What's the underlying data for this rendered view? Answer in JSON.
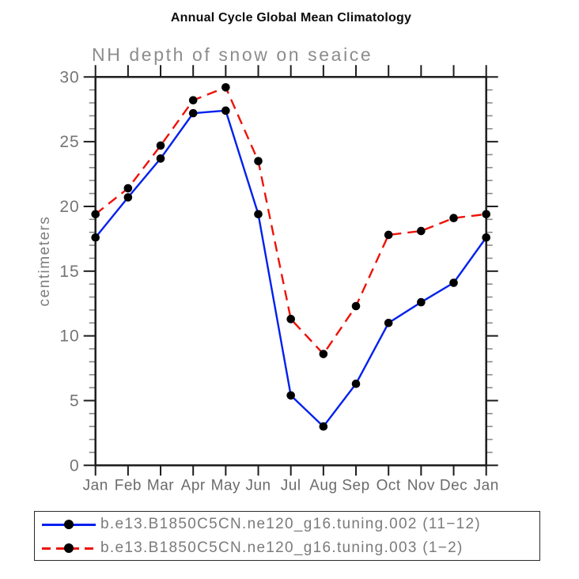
{
  "page": {
    "title": "Annual Cycle Global Mean Climatology",
    "subtitle": "NH depth of snow on seaice"
  },
  "chart_data": {
    "type": "line",
    "title": "Annual Cycle Global Mean Climatology",
    "subtitle": "NH depth of snow on seaice",
    "xlabel": "",
    "ylabel": "centimeters",
    "categories": [
      "Jan",
      "Feb",
      "Mar",
      "Apr",
      "May",
      "Jun",
      "Jul",
      "Aug",
      "Sep",
      "Oct",
      "Nov",
      "Dec",
      "Jan"
    ],
    "ylim": [
      0,
      30
    ],
    "yticks": [
      0,
      5,
      10,
      15,
      20,
      25,
      30
    ],
    "minor_tick_step": 1,
    "grid": false,
    "legend_position": "bottom-left-box",
    "series": [
      {
        "name": "b.e13.B1850C5CN.ne120_g16.tuning.002 (11−12)",
        "color": "#0020ee",
        "line_style": "solid",
        "marker": "black-circle",
        "values": [
          17.6,
          20.7,
          23.7,
          27.2,
          27.4,
          19.4,
          5.4,
          3.0,
          6.3,
          11.0,
          12.6,
          14.1,
          17.6
        ]
      },
      {
        "name": "b.e13.B1850C5CN.ne120_g16.tuning.003 (1−2)",
        "color": "#ee1208",
        "line_style": "dashed",
        "marker": "black-circle",
        "values": [
          19.4,
          21.4,
          24.7,
          28.2,
          29.2,
          23.5,
          11.3,
          8.6,
          12.3,
          17.8,
          18.1,
          19.1,
          19.4
        ]
      }
    ],
    "colors": {
      "frame": "#1c1c1c",
      "major_tick": "#1c1c1c",
      "minor_tick": "#8a8a8a",
      "tick_label": "#757575",
      "month_label": "#6b6b6b",
      "axis_title": "#7d7d7d",
      "marker": "#000000"
    }
  }
}
